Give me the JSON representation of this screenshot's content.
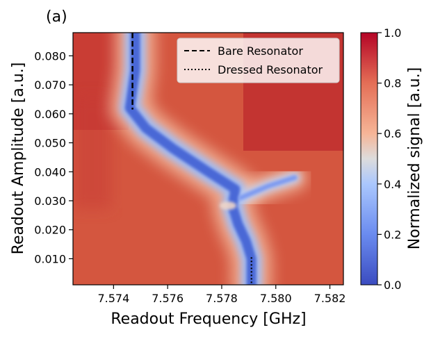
{
  "panel_label": "(a)",
  "chart_data": {
    "type": "heatmap",
    "xlabel": "Readout Frequency [GHz]",
    "ylabel": "Readout Amplitude [a.u.]",
    "xlim": [
      7.5725,
      7.5825
    ],
    "ylim": [
      0.001,
      0.088
    ],
    "x_ticks": [
      "7.574",
      "7.576",
      "7.578",
      "7.580",
      "7.582"
    ],
    "x_tick_values": [
      7.574,
      7.576,
      7.578,
      7.58,
      7.582
    ],
    "y_ticks": [
      "0.010",
      "0.020",
      "0.030",
      "0.040",
      "0.050",
      "0.060",
      "0.070",
      "0.080"
    ],
    "y_tick_values": [
      0.01,
      0.02,
      0.03,
      0.04,
      0.05,
      0.06,
      0.07,
      0.08
    ],
    "colormap": "coolwarm",
    "colorbar": {
      "label": "Normalized signal [a.u.]",
      "range": [
        0.0,
        1.0
      ],
      "ticks": [
        "0.0",
        "0.2",
        "0.4",
        "0.6",
        "0.8",
        "1.0"
      ],
      "tick_values": [
        0.0,
        0.2,
        0.4,
        0.6,
        0.8,
        1.0
      ]
    },
    "resonance_trace": [
      {
        "amp": 0.088,
        "freq": 7.5748
      },
      {
        "amp": 0.075,
        "freq": 7.5748
      },
      {
        "amp": 0.062,
        "freq": 7.5746
      },
      {
        "amp": 0.055,
        "freq": 7.5752
      },
      {
        "amp": 0.048,
        "freq": 7.5762
      },
      {
        "amp": 0.04,
        "freq": 7.5775
      },
      {
        "amp": 0.034,
        "freq": 7.5785
      },
      {
        "amp": 0.028,
        "freq": 7.5784
      },
      {
        "amp": 0.022,
        "freq": 7.5786
      },
      {
        "amp": 0.016,
        "freq": 7.5789
      },
      {
        "amp": 0.01,
        "freq": 7.5791
      },
      {
        "amp": 0.001,
        "freq": 7.5791
      }
    ],
    "upper_branch": [
      {
        "amp": 0.031,
        "freq": 7.5787
      },
      {
        "amp": 0.035,
        "freq": 7.5797
      },
      {
        "amp": 0.038,
        "freq": 7.5807
      }
    ],
    "lines": [
      {
        "name": "Bare Resonator",
        "style": "dashed",
        "x": 7.5747,
        "y_range": [
          0.0615,
          0.088
        ]
      },
      {
        "name": "Dressed Resonator",
        "style": "dotted",
        "x": 7.5791,
        "y_range": [
          0.001,
          0.0105
        ]
      }
    ],
    "legend": {
      "placement": "top-right",
      "entries": [
        "Bare Resonator",
        "Dressed Resonator"
      ]
    }
  }
}
